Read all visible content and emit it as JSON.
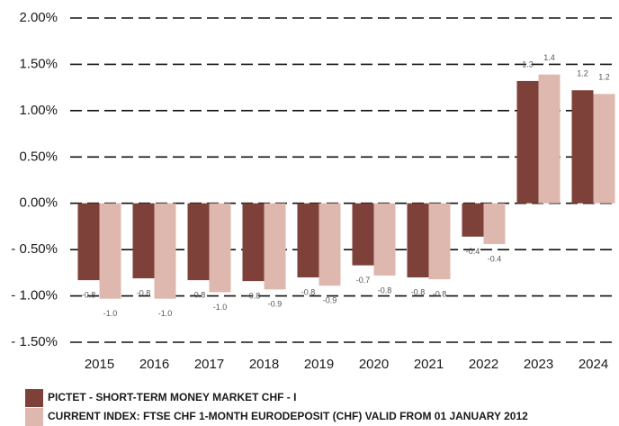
{
  "chart_data": {
    "type": "bar",
    "categories": [
      "2015",
      "2016",
      "2017",
      "2018",
      "2019",
      "2020",
      "2021",
      "2022",
      "2023",
      "2024"
    ],
    "series": [
      {
        "name": "PICTET - SHORT-TERM MONEY MARKET CHF - I",
        "color": "#7d4139",
        "values": [
          -0.83,
          -0.81,
          -0.83,
          -0.84,
          -0.8,
          -0.67,
          -0.8,
          -0.36,
          1.32,
          1.22
        ],
        "value_labels": [
          "-0.8",
          "-0.8",
          "-0.8",
          "-0.8",
          "-0.8",
          "-0.7",
          "-0.8",
          "-0.4",
          "1.3",
          "1.2"
        ]
      },
      {
        "name": "CURRENT INDEX: FTSE CHF 1-MONTH EURODEPOSIT (CHF) VALID FROM 01 JANUARY 2012",
        "color": "#deb8ae",
        "values": [
          -1.03,
          -1.03,
          -0.96,
          -0.93,
          -0.89,
          -0.78,
          -0.82,
          -0.44,
          1.39,
          1.18
        ],
        "value_labels": [
          "-1.0",
          "-1.0",
          "-1.0",
          "-0.9",
          "-0.9",
          "-0.8",
          "-0.8",
          "-0.4",
          "1.4",
          "1.2"
        ]
      }
    ],
    "ylim": [
      -1.5,
      2.0
    ],
    "yticks": [
      {
        "value": -1.5,
        "label": "- 1.50%"
      },
      {
        "value": -1.0,
        "label": "- 1.00%"
      },
      {
        "value": -0.5,
        "label": "- 0.50%"
      },
      {
        "value": 0,
        "label": "0.00%"
      },
      {
        "value": 0.5,
        "label": "0.50%"
      },
      {
        "value": 1.0,
        "label": "1.00%"
      },
      {
        "value": 1.5,
        "label": "1.50%"
      },
      {
        "value": 2.0,
        "label": "2.00%"
      }
    ],
    "grid": true
  }
}
